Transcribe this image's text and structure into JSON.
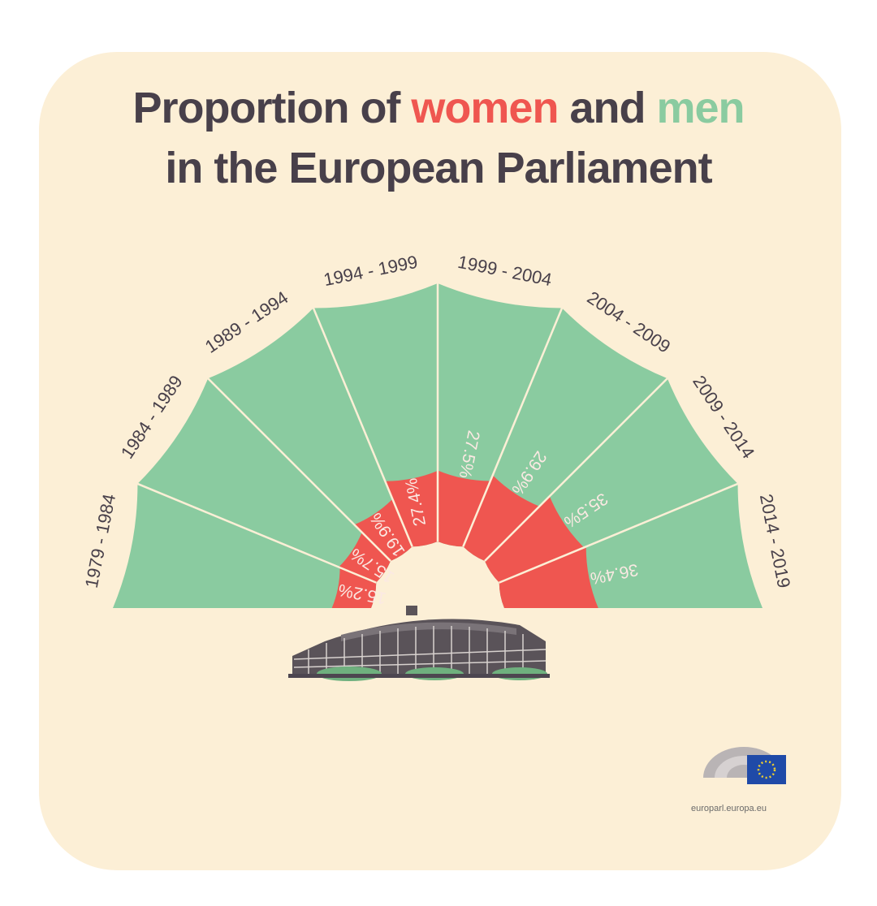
{
  "title": {
    "line1_pre": "Proportion of ",
    "women": "women",
    "mid": " and ",
    "men": "men",
    "line2": "in the European Parliament"
  },
  "colors": {
    "women": "#ef5650",
    "men": "#8acba0",
    "text": "#48404a",
    "background": "#fcefd6"
  },
  "chart_data": {
    "type": "pie",
    "subtype": "half-donut",
    "title": "Proportion of women and men in the European Parliament",
    "categories": [
      "1979 - 1984",
      "1984 - 1989",
      "1989 - 1994",
      "1994 - 1999",
      "1999 - 2004",
      "2004 - 2009",
      "2009 - 2014",
      "2014 - 2019"
    ],
    "series": [
      {
        "name": "women",
        "values": [
          15.2,
          15.7,
          19.9,
          27.4,
          27.5,
          29.9,
          35.5,
          36.4
        ]
      },
      {
        "name": "men",
        "values": [
          84.8,
          84.3,
          80.1,
          72.6,
          72.5,
          70.1,
          64.5,
          63.6
        ]
      }
    ],
    "value_labels": [
      "15.2%",
      "15.7%",
      "19.9%",
      "27.4%",
      "27.5%",
      "29.9%",
      "35.5%",
      "36.4%"
    ],
    "ylim": [
      0,
      100
    ]
  },
  "logo": {
    "caption": "europarl.europa.eu"
  }
}
